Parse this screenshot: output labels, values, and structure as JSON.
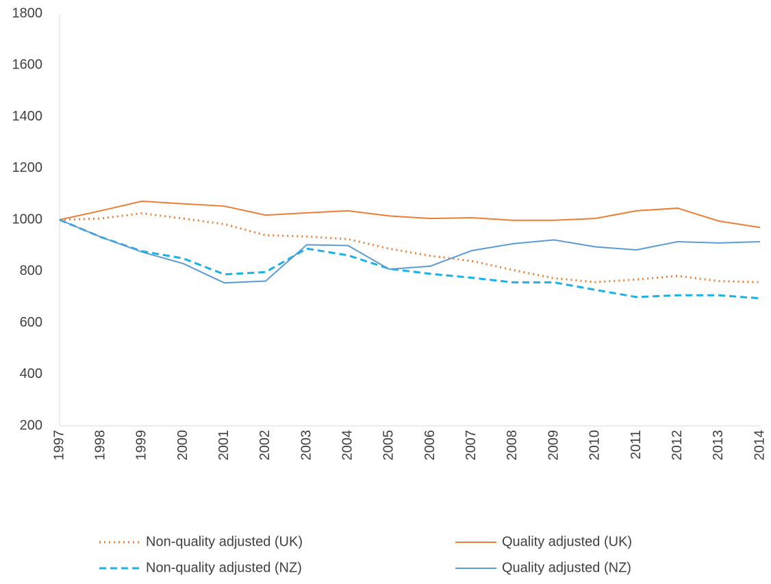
{
  "chart_data": {
    "type": "line",
    "categories": [
      "1997",
      "1998",
      "1999",
      "2000",
      "2001",
      "2002",
      "2003",
      "2004",
      "2005",
      "2006",
      "2007",
      "2008",
      "2009",
      "2010",
      "2011",
      "2012",
      "2013",
      "2014"
    ],
    "series": [
      {
        "name": "Non-quality adjusted (UK)",
        "color": "#ed7d31",
        "line_style": "dotted",
        "values": [
          1000,
          1005,
          1025,
          1005,
          983,
          940,
          935,
          925,
          888,
          860,
          840,
          805,
          773,
          758,
          768,
          782,
          762,
          758
        ]
      },
      {
        "name": "Quality adjusted (UK)",
        "color": "#ed7d31",
        "line_style": "solid",
        "values": [
          1000,
          1035,
          1072,
          1062,
          1053,
          1018,
          1027,
          1035,
          1015,
          1005,
          1008,
          998,
          998,
          1005,
          1035,
          1045,
          995,
          970
        ]
      },
      {
        "name": "Non-quality adjusted (NZ)",
        "color": "#1ab0e8",
        "line_style": "dashed",
        "values": [
          1000,
          933,
          878,
          850,
          788,
          797,
          888,
          862,
          810,
          790,
          775,
          757,
          757,
          728,
          700,
          707,
          707,
          695
        ]
      },
      {
        "name": "Quality adjusted (NZ)",
        "color": "#5b9bd5",
        "line_style": "solid",
        "values": [
          1000,
          933,
          875,
          830,
          755,
          762,
          903,
          900,
          808,
          820,
          880,
          907,
          922,
          895,
          883,
          915,
          910,
          915
        ]
      }
    ],
    "ylim": [
      200,
      1800
    ],
    "yticks": [
      200,
      400,
      600,
      800,
      1000,
      1200,
      1400,
      1600,
      1800
    ],
    "grid": false
  }
}
